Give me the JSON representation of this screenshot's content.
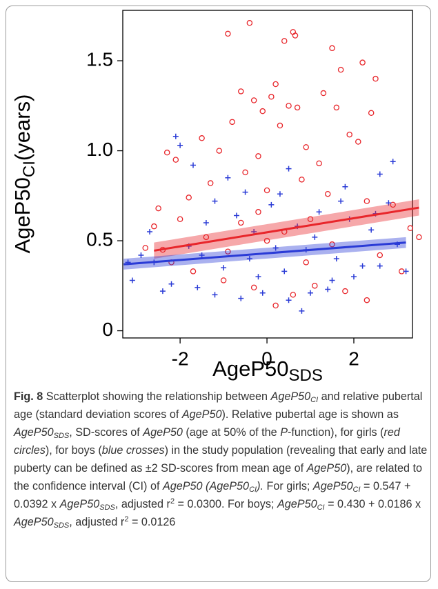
{
  "chart_data": {
    "type": "scatter",
    "x_label": {
      "main": "AgeP50",
      "sub": "SDS"
    },
    "y_label": {
      "main": "AgeP50",
      "sub": "CI",
      "unit": "(years)"
    },
    "xlim": [
      -3.32,
      3.35
    ],
    "ylim": [
      -0.04,
      1.78
    ],
    "xticks": [
      -2,
      0,
      2
    ],
    "yticks": [
      0,
      0.5,
      {
        "value": 1,
        "label": "1.0"
      },
      1.5
    ],
    "series": [
      {
        "color": "#e8262b",
        "marker": "circle",
        "x": [
          -0.4,
          -0.9,
          0.6,
          0.65,
          0.4,
          1.5,
          2.2,
          1.7,
          2.5,
          0.2,
          -0.6,
          1.3,
          0.1,
          -0.3,
          0.5,
          0.7,
          1.6,
          -0.1,
          2.4,
          -0.8,
          0.3,
          -1.5,
          1.9,
          -2.1,
          -2.3,
          2.1,
          -1.1,
          0.9,
          -0.2,
          1.2,
          -2.5,
          -2.6,
          -2.0,
          -1.8,
          -1.3,
          -0.5,
          0.0,
          0.8,
          1.4,
          2.3,
          2.9,
          3.3,
          3.5,
          -2.4,
          -2.2,
          -1.7,
          -1.0,
          -0.3,
          0.2,
          0.6,
          1.1,
          1.8,
          2.3,
          3.1,
          2.6,
          1.5,
          0.4,
          -0.6,
          -1.4,
          -0.9,
          0.9,
          0.0,
          -0.2,
          1.0,
          -2.8
        ],
        "values": [
          1.71,
          1.65,
          1.66,
          1.64,
          1.61,
          1.57,
          1.49,
          1.45,
          1.4,
          1.37,
          1.33,
          1.32,
          1.3,
          1.28,
          1.25,
          1.24,
          1.24,
          1.22,
          1.21,
          1.16,
          1.14,
          1.07,
          1.09,
          0.95,
          0.99,
          1.05,
          1.0,
          1.02,
          0.97,
          0.93,
          0.68,
          0.58,
          0.62,
          0.74,
          0.82,
          0.88,
          0.78,
          0.84,
          0.76,
          0.72,
          0.7,
          0.57,
          0.52,
          0.45,
          0.38,
          0.33,
          0.28,
          0.24,
          0.14,
          0.2,
          0.25,
          0.22,
          0.17,
          0.33,
          0.42,
          0.48,
          0.55,
          0.6,
          0.52,
          0.44,
          0.38,
          0.5,
          0.66,
          0.62,
          0.46
        ]
      },
      {
        "color": "#2a3bd6",
        "marker": "cross",
        "x": [
          -2.1,
          -2.0,
          2.9,
          2.6,
          -1.7,
          0.5,
          -0.9,
          1.8,
          -1.2,
          2.8,
          -3.2,
          -3.1,
          -2.7,
          -2.6,
          -2.2,
          -2.4,
          -1.6,
          -1.2,
          -0.6,
          -0.1,
          0.5,
          1.0,
          1.4,
          0.8,
          1.5,
          2.2,
          2.6,
          3.2,
          3.0,
          2.4,
          1.9,
          1.2,
          0.7,
          0.2,
          -0.4,
          -1.0,
          -1.8,
          -0.3,
          0.9,
          1.6,
          -0.7,
          0.1,
          -1.4,
          2.0,
          -2.9,
          0.4,
          -0.2,
          1.1,
          -1.5,
          2.5,
          0.3,
          1.7,
          -0.5
        ],
        "values": [
          1.08,
          1.03,
          0.94,
          0.87,
          0.92,
          0.9,
          0.85,
          0.8,
          0.72,
          0.71,
          0.38,
          0.28,
          0.55,
          0.38,
          0.26,
          0.22,
          0.24,
          0.2,
          0.18,
          0.21,
          0.17,
          0.21,
          0.23,
          0.11,
          0.28,
          0.36,
          0.36,
          0.33,
          0.48,
          0.56,
          0.62,
          0.66,
          0.58,
          0.46,
          0.4,
          0.35,
          0.47,
          0.55,
          0.45,
          0.4,
          0.64,
          0.7,
          0.6,
          0.3,
          0.42,
          0.33,
          0.3,
          0.52,
          0.42,
          0.65,
          0.76,
          0.72,
          0.77
        ]
      }
    ],
    "fits": [
      {
        "color": "#e8262b",
        "x": [
          -2.6,
          3.5
        ],
        "values": [
          0.445,
          0.684
        ],
        "lower": [
          0.4,
          0.64
        ],
        "upper": [
          0.49,
          0.73
        ]
      },
      {
        "color": "#2a3bd6",
        "x": [
          -3.3,
          3.2
        ],
        "values": [
          0.369,
          0.49
        ],
        "lower": [
          0.34,
          0.46
        ],
        "upper": [
          0.4,
          0.52
        ]
      }
    ]
  },
  "caption": [
    {
      "text": "Fig. 8",
      "style": "b"
    },
    {
      "text": " Scatterplot showing the relationship between "
    },
    {
      "text": "AgeP50",
      "style": "i"
    },
    {
      "text": "CI",
      "style": "isub"
    },
    {
      "text": " and relative pubertal age (standard deviation scores of "
    },
    {
      "text": "AgeP50",
      "style": "i"
    },
    {
      "text": "). Relative pubertal age is shown as "
    },
    {
      "text": "AgeP50",
      "style": "i"
    },
    {
      "text": "SDS",
      "style": "isub"
    },
    {
      "text": ", SD-scores of "
    },
    {
      "text": "AgeP50",
      "style": "i"
    },
    {
      "text": " (age at 50% of the "
    },
    {
      "text": "P",
      "style": "i"
    },
    {
      "text": "-function), for girls ("
    },
    {
      "text": "red circles",
      "style": "i"
    },
    {
      "text": "), for boys ("
    },
    {
      "text": "blue crosses",
      "style": "i"
    },
    {
      "text": ") in the study population (revealing that early and late puberty can be defined as ±2 SD-scores from mean age of "
    },
    {
      "text": "AgeP50",
      "style": "i"
    },
    {
      "text": "), are related to the confidence interval (CI) of "
    },
    {
      "text": "AgeP50 (AgeP50",
      "style": "i"
    },
    {
      "text": "CI",
      "style": "isub"
    },
    {
      "text": ").",
      "style": "i"
    },
    {
      "text": " For girls; "
    },
    {
      "text": "AgeP50",
      "style": "i"
    },
    {
      "text": "CI",
      "style": "isub"
    },
    {
      "text": " = 0.547 + 0.0392 x "
    },
    {
      "text": "AgeP50",
      "style": "i"
    },
    {
      "text": "SDS",
      "style": "isub"
    },
    {
      "text": ", adjusted r"
    },
    {
      "text": "2",
      "style": "sup"
    },
    {
      "text": " = 0.0300. For boys; "
    },
    {
      "text": "AgeP50",
      "style": "i"
    },
    {
      "text": "CI",
      "style": "isub"
    },
    {
      "text": " = 0.430 + 0.0186 x "
    },
    {
      "text": "AgeP50",
      "style": "i"
    },
    {
      "text": "SDS",
      "style": "isub"
    },
    {
      "text": ", adjusted r"
    },
    {
      "text": "2",
      "style": "sup"
    },
    {
      "text": " = 0.0126"
    }
  ]
}
